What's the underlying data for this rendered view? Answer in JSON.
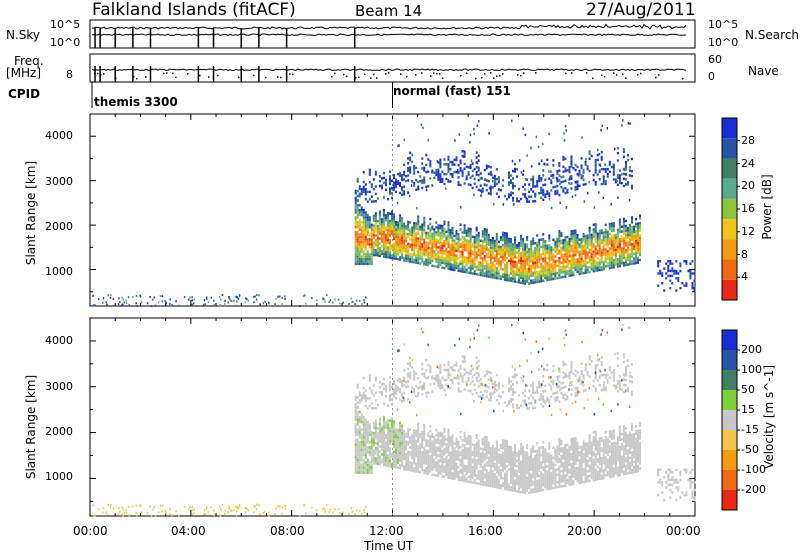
{
  "header": {
    "station": "Falkland Islands (fitACF)",
    "beam": "Beam 14",
    "date": "27/Aug/2011"
  },
  "strip": {
    "nsky_label": "N.Sky",
    "nsky_ticks": [
      "10^5",
      "10^0"
    ],
    "nsearch_label": "N.Search",
    "nsearch_ticks": [
      "10^5",
      "10^0"
    ],
    "freq_label": "Freq.",
    "freq_unit": "[MHz]",
    "freq_ticks": [
      "8"
    ],
    "nave_label": "Nave",
    "nave_ticks": [
      "60",
      "0"
    ],
    "cpid_label": "CPID",
    "cpid_modes": [
      "themis 3300",
      "normal (fast) 151"
    ]
  },
  "power_panel": {
    "ylabel": "Slant Range [km]",
    "yticks": [
      "4000",
      "3000",
      "2000",
      "1000"
    ],
    "cbar_label": "Power [dB]",
    "cbar_ticks": [
      "28",
      "24",
      "20",
      "16",
      "12",
      "8",
      "4"
    ],
    "colors": [
      "#1a2cd6",
      "#2554a8",
      "#3f7f66",
      "#5aa88e",
      "#8cc63f",
      "#f0c419",
      "#f59b14",
      "#f06a14",
      "#e82a14"
    ]
  },
  "velocity_panel": {
    "ylabel": "Slant Range [km]",
    "yticks": [
      "4000",
      "3000",
      "2000",
      "1000"
    ],
    "cbar_label": "Velocity [m s^-1]",
    "cbar_ticks": [
      "200",
      "100",
      "50",
      "15",
      "-15",
      "-50",
      "-100",
      "-200"
    ],
    "colors": [
      "#1a2cd6",
      "#2554a8",
      "#3f7f66",
      "#7fd13b",
      "#c8c8c8",
      "#f5c64a",
      "#f59b14",
      "#f06a14",
      "#e82a14"
    ]
  },
  "xaxis": {
    "label": "Time UT",
    "ticks": [
      "00:00",
      "04:00",
      "08:00",
      "12:00",
      "16:00",
      "20:00",
      "00:00"
    ]
  },
  "chart_data": {
    "type": "heatmap",
    "xlabel": "Time UT",
    "ylabel": "Slant Range [km]",
    "xlim_hours": [
      0,
      24
    ],
    "ylim_km": [
      180,
      4500
    ],
    "power_scale_dB": [
      0,
      30
    ],
    "velocity_scale_ms": [
      -250,
      250
    ],
    "echo_regions": [
      {
        "start_h": 10.5,
        "end_h": 21.8,
        "range_km": [
          700,
          2300
        ],
        "peak_power_dB": 26,
        "velocity_ms": -10,
        "description": "main band"
      },
      {
        "start_h": 10.5,
        "end_h": 21.5,
        "range_km": [
          2600,
          3700
        ],
        "peak_power_dB": 8,
        "velocity_ms": 0,
        "description": "upper band"
      },
      {
        "start_h": 22.5,
        "end_h": 24.0,
        "range_km": [
          500,
          1200
        ],
        "peak_power_dB": 6,
        "velocity_ms": 0,
        "description": "late echoes"
      }
    ],
    "cpid_changes_h": [
      0.2,
      0.4,
      1.0,
      1.7,
      2.4,
      4.3,
      4.9,
      6.0,
      6.7,
      7.8,
      10.5
    ]
  }
}
